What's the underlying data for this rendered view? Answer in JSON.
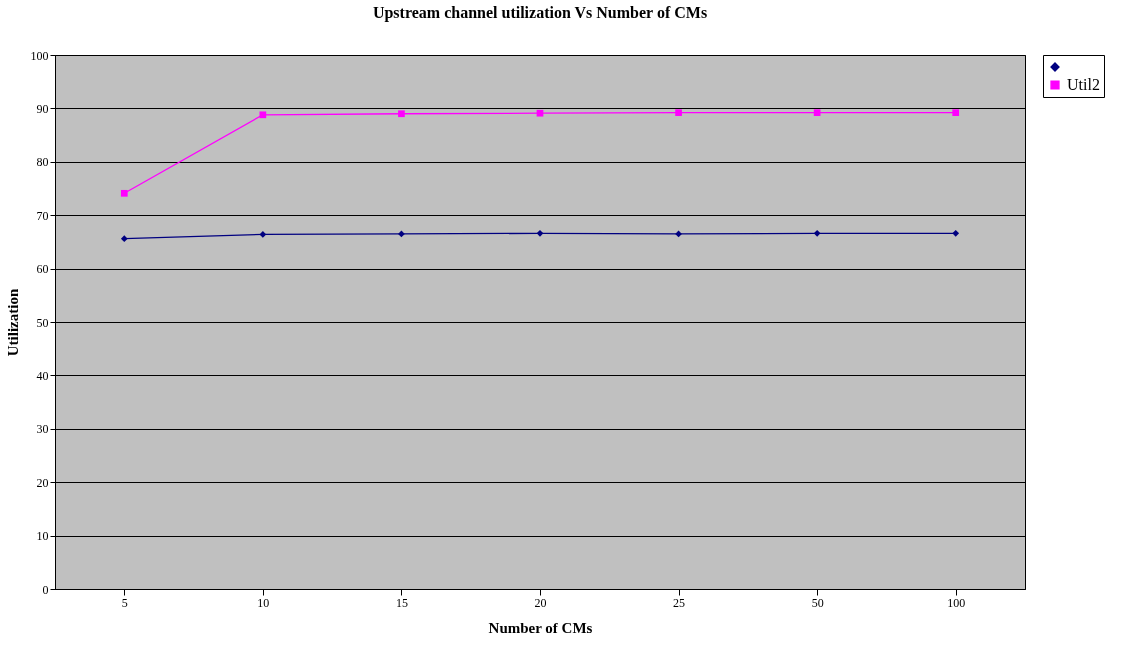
{
  "chart_data": {
    "type": "line",
    "title": "Upstream channel utilization Vs Number of CMs",
    "xlabel": "Number of CMs",
    "ylabel": "Utilization",
    "categories": [
      "5",
      "10",
      "15",
      "20",
      "25",
      "50",
      "100"
    ],
    "series": [
      {
        "color": "#000080",
        "marker": "diamond",
        "values": [
          65.6,
          66.4,
          66.5,
          66.6,
          66.5,
          66.6,
          66.6
        ]
      },
      {
        "name": "Util2",
        "color": "#ff00ff",
        "marker": "square",
        "values": [
          74.1,
          88.8,
          89.0,
          89.1,
          89.2,
          89.2,
          89.2
        ]
      }
    ],
    "ylim": [
      0,
      100
    ],
    "yticks": [
      0,
      10,
      20,
      30,
      40,
      50,
      60,
      70,
      80,
      90,
      100
    ],
    "grid": "y",
    "legend": "right",
    "line_style": "solid"
  }
}
